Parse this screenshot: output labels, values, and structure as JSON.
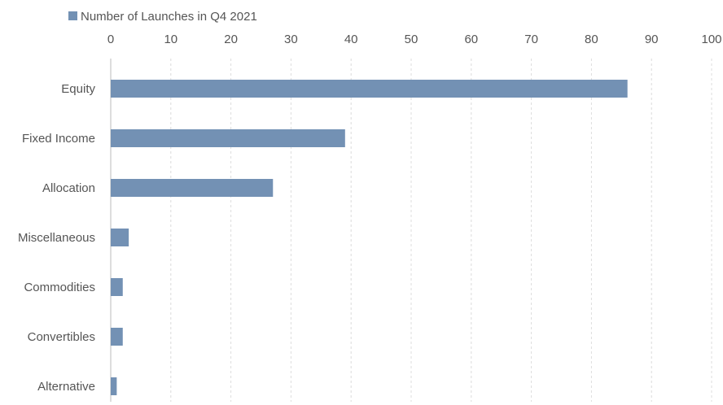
{
  "chart_data": {
    "type": "bar",
    "orientation": "horizontal",
    "title": "",
    "xlabel": "",
    "ylabel": "",
    "categories": [
      "Equity",
      "Fixed Income",
      "Allocation",
      "Miscellaneous",
      "Commodities",
      "Convertibles",
      "Alternative"
    ],
    "series": [
      {
        "name": "Number of Launches in Q4 2021",
        "values": [
          86,
          39,
          27,
          3,
          2,
          2,
          1
        ],
        "color": "#7391b4"
      }
    ],
    "xlim": [
      0,
      100
    ],
    "xticks": [
      0,
      10,
      20,
      30,
      40,
      50,
      60,
      70,
      80,
      90,
      100
    ],
    "x_axis_position": "top",
    "grid": true,
    "legend_position": "top-left"
  }
}
